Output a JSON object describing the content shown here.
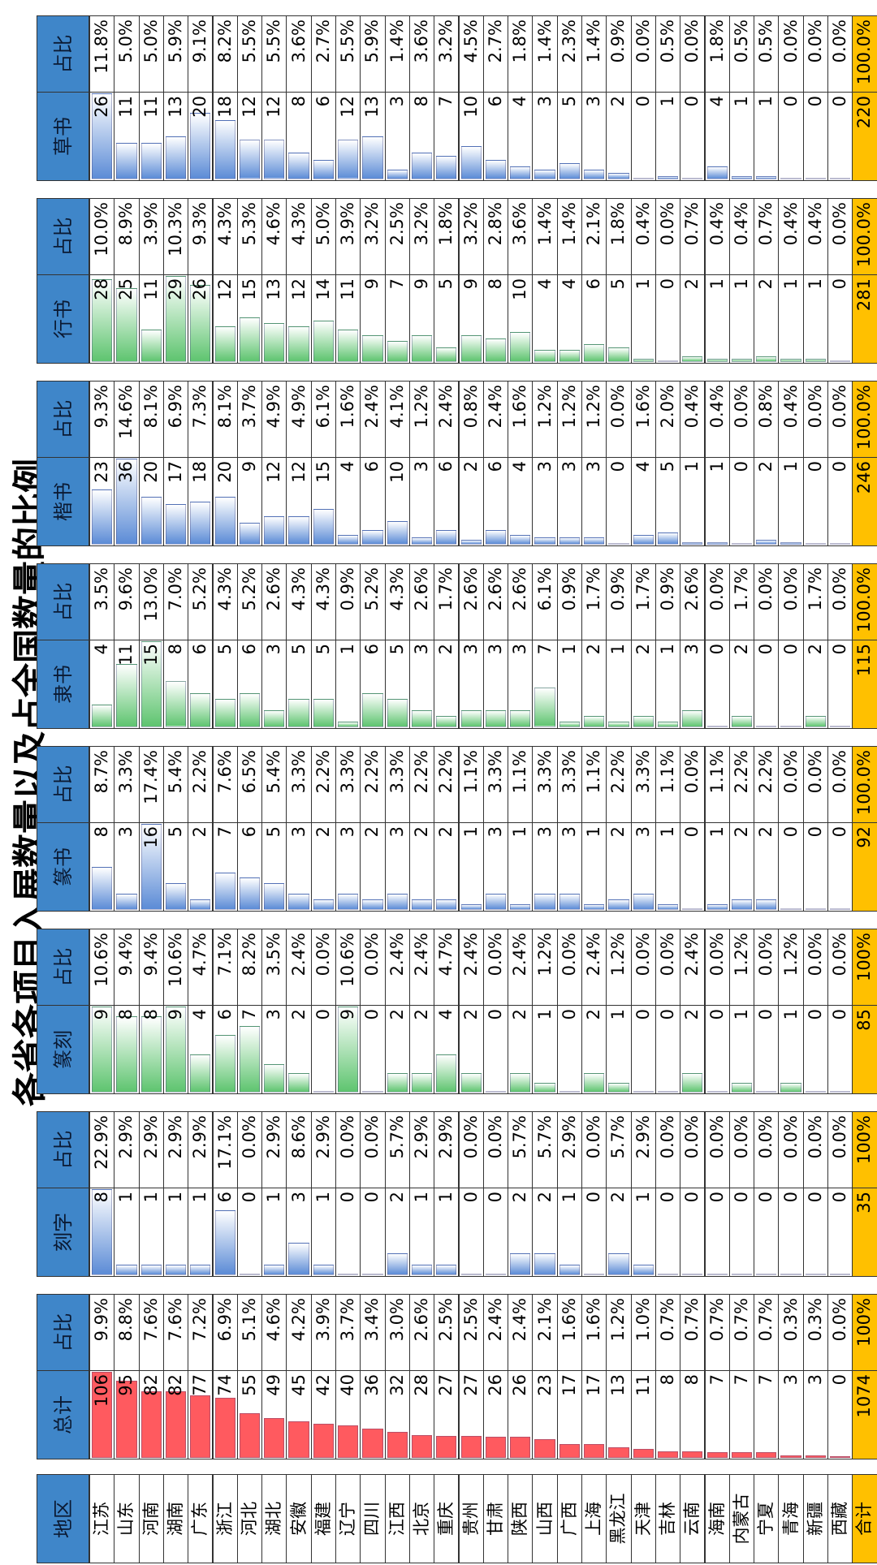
{
  "title": "各省各项目入展数量以及占全国数量的比例",
  "region_header": "地区",
  "regions": [
    "江苏",
    "山东",
    "河南",
    "湖南",
    "广东",
    "浙江",
    "河北",
    "湖北",
    "安徽",
    "福建",
    "辽宁",
    "四川",
    "江西",
    "北京",
    "重庆",
    "贵州",
    "甘肃",
    "陕西",
    "山西",
    "广西",
    "上海",
    "黑龙江",
    "天津",
    "吉林",
    "云南",
    "海南",
    "内蒙古",
    "宁夏",
    "青海",
    "新疆",
    "西藏"
  ],
  "total_label": "合计",
  "groups": [
    {
      "name": "总计",
      "share_label": "占比",
      "bar_color": "#ff5a5f",
      "bar_gradient": false,
      "counts": [
        106,
        95,
        82,
        82,
        77,
        74,
        55,
        49,
        45,
        42,
        40,
        36,
        32,
        28,
        27,
        27,
        26,
        26,
        23,
        17,
        17,
        13,
        11,
        8,
        8,
        7,
        7,
        7,
        3,
        3,
        0
      ],
      "shares": [
        "9.9%",
        "8.8%",
        "7.6%",
        "7.6%",
        "7.2%",
        "6.9%",
        "5.1%",
        "4.6%",
        "4.2%",
        "3.9%",
        "3.7%",
        "3.4%",
        "3.0%",
        "2.6%",
        "2.5%",
        "2.5%",
        "2.4%",
        "2.4%",
        "2.1%",
        "1.6%",
        "1.6%",
        "1.2%",
        "1.0%",
        "0.7%",
        "0.7%",
        "0.7%",
        "0.7%",
        "0.7%",
        "0.3%",
        "0.3%",
        "0.0%"
      ],
      "total": 1074,
      "total_share": "100%"
    },
    {
      "name": "刻字",
      "share_label": "占比",
      "bar_color": "#5b8bd6",
      "bar_gradient": true,
      "counts": [
        8,
        1,
        1,
        1,
        1,
        6,
        0,
        1,
        3,
        1,
        0,
        0,
        2,
        1,
        1,
        0,
        0,
        2,
        2,
        1,
        0,
        2,
        1,
        0,
        0,
        0,
        0,
        0,
        0,
        0,
        0
      ],
      "shares": [
        "22.9%",
        "2.9%",
        "2.9%",
        "2.9%",
        "2.9%",
        "17.1%",
        "0.0%",
        "2.9%",
        "8.6%",
        "2.9%",
        "0.0%",
        "0.0%",
        "5.7%",
        "2.9%",
        "2.9%",
        "0.0%",
        "0.0%",
        "5.7%",
        "5.7%",
        "2.9%",
        "0.0%",
        "5.7%",
        "2.9%",
        "0.0%",
        "0.0%",
        "0.0%",
        "0.0%",
        "0.0%",
        "0.0%",
        "0.0%",
        "0.0%"
      ],
      "total": 35,
      "total_share": "100%"
    },
    {
      "name": "篆刻",
      "share_label": "占比",
      "bar_color": "#5ec46f",
      "bar_gradient": true,
      "counts": [
        9,
        8,
        8,
        9,
        4,
        6,
        7,
        3,
        2,
        0,
        9,
        0,
        2,
        2,
        4,
        2,
        0,
        2,
        1,
        0,
        2,
        1,
        0,
        0,
        2,
        0,
        1,
        0,
        1,
        0,
        0
      ],
      "shares": [
        "10.6%",
        "9.4%",
        "9.4%",
        "10.6%",
        "4.7%",
        "7.1%",
        "8.2%",
        "3.5%",
        "2.4%",
        "0.0%",
        "10.6%",
        "0.0%",
        "2.4%",
        "2.4%",
        "4.7%",
        "2.4%",
        "0.0%",
        "2.4%",
        "1.2%",
        "0.0%",
        "2.4%",
        "1.2%",
        "0.0%",
        "0.0%",
        "2.4%",
        "0.0%",
        "1.2%",
        "0.0%",
        "1.2%",
        "0.0%",
        "0.0%"
      ],
      "total": 85,
      "total_share": "100%"
    },
    {
      "name": "篆书",
      "share_label": "占比",
      "bar_color": "#5b8bd6",
      "bar_gradient": true,
      "counts": [
        8,
        3,
        16,
        5,
        2,
        7,
        6,
        5,
        3,
        2,
        3,
        2,
        3,
        2,
        2,
        1,
        3,
        1,
        3,
        3,
        1,
        2,
        3,
        1,
        0,
        1,
        2,
        2,
        0,
        0,
        0
      ],
      "shares": [
        "8.7%",
        "3.3%",
        "17.4%",
        "5.4%",
        "2.2%",
        "7.6%",
        "6.5%",
        "5.4%",
        "3.3%",
        "2.2%",
        "3.3%",
        "2.2%",
        "3.3%",
        "2.2%",
        "2.2%",
        "1.1%",
        "3.3%",
        "1.1%",
        "3.3%",
        "3.3%",
        "1.1%",
        "2.2%",
        "3.3%",
        "1.1%",
        "0.0%",
        "1.1%",
        "2.2%",
        "2.2%",
        "0.0%",
        "0.0%",
        "0.0%"
      ],
      "total": 92,
      "total_share": "100.0%"
    },
    {
      "name": "隶书",
      "share_label": "占比",
      "bar_color": "#5ec46f",
      "bar_gradient": true,
      "counts": [
        4,
        11,
        15,
        8,
        6,
        5,
        6,
        3,
        5,
        5,
        1,
        6,
        5,
        3,
        2,
        3,
        3,
        3,
        7,
        1,
        2,
        1,
        2,
        1,
        3,
        0,
        2,
        0,
        0,
        2,
        0
      ],
      "shares": [
        "3.5%",
        "9.6%",
        "13.0%",
        "7.0%",
        "5.2%",
        "4.3%",
        "5.2%",
        "2.6%",
        "4.3%",
        "4.3%",
        "0.9%",
        "5.2%",
        "4.3%",
        "2.6%",
        "1.7%",
        "2.6%",
        "2.6%",
        "2.6%",
        "6.1%",
        "0.9%",
        "1.7%",
        "0.9%",
        "1.7%",
        "0.9%",
        "2.6%",
        "0.0%",
        "1.7%",
        "0.0%",
        "0.0%",
        "1.7%",
        "0.0%"
      ],
      "total": 115,
      "total_share": "100.0%"
    },
    {
      "name": "楷书",
      "share_label": "占比",
      "bar_color": "#5b8bd6",
      "bar_gradient": true,
      "counts": [
        23,
        36,
        20,
        17,
        18,
        20,
        9,
        12,
        12,
        15,
        4,
        6,
        10,
        3,
        6,
        2,
        6,
        4,
        3,
        3,
        3,
        0,
        4,
        5,
        1,
        1,
        0,
        2,
        1,
        0,
        0
      ],
      "shares": [
        "9.3%",
        "14.6%",
        "8.1%",
        "6.9%",
        "7.3%",
        "8.1%",
        "3.7%",
        "4.9%",
        "4.9%",
        "6.1%",
        "1.6%",
        "2.4%",
        "4.1%",
        "1.2%",
        "2.4%",
        "0.8%",
        "2.4%",
        "1.6%",
        "1.2%",
        "1.2%",
        "1.2%",
        "0.0%",
        "1.6%",
        "2.0%",
        "0.4%",
        "0.4%",
        "0.0%",
        "0.8%",
        "0.4%",
        "0.0%",
        "0.0%"
      ],
      "total": 246,
      "total_share": "100.0%"
    },
    {
      "name": "行书",
      "share_label": "占比",
      "bar_color": "#5ec46f",
      "bar_gradient": true,
      "counts": [
        28,
        25,
        11,
        29,
        26,
        12,
        15,
        13,
        12,
        14,
        11,
        9,
        7,
        9,
        5,
        9,
        8,
        10,
        4,
        4,
        6,
        5,
        1,
        0,
        2,
        1,
        1,
        2,
        1,
        1,
        0
      ],
      "shares": [
        "10.0%",
        "8.9%",
        "3.9%",
        "10.3%",
        "9.3%",
        "4.3%",
        "5.3%",
        "4.6%",
        "4.3%",
        "5.0%",
        "3.9%",
        "3.2%",
        "2.5%",
        "3.2%",
        "1.8%",
        "3.2%",
        "2.8%",
        "3.6%",
        "1.4%",
        "1.4%",
        "2.1%",
        "1.8%",
        "0.4%",
        "0.0%",
        "0.7%",
        "0.4%",
        "0.4%",
        "0.7%",
        "0.4%",
        "0.4%",
        "0.0%"
      ],
      "total": 281,
      "total_share": "100.0%"
    },
    {
      "name": "草书",
      "share_label": "占比",
      "bar_color": "#5b8bd6",
      "bar_gradient": true,
      "counts": [
        26,
        11,
        11,
        13,
        20,
        18,
        12,
        12,
        8,
        6,
        12,
        13,
        3,
        8,
        7,
        10,
        6,
        4,
        3,
        5,
        3,
        2,
        0,
        1,
        0,
        4,
        1,
        1,
        0,
        0,
        0
      ],
      "shares": [
        "11.8%",
        "5.0%",
        "5.0%",
        "5.9%",
        "9.1%",
        "8.2%",
        "5.5%",
        "5.5%",
        "3.6%",
        "2.7%",
        "5.5%",
        "5.9%",
        "1.4%",
        "3.6%",
        "3.2%",
        "4.5%",
        "2.7%",
        "1.8%",
        "1.4%",
        "2.3%",
        "1.4%",
        "0.9%",
        "0.0%",
        "0.5%",
        "0.0%",
        "1.8%",
        "0.5%",
        "0.5%",
        "0.0%",
        "0.0%",
        "0.0%"
      ],
      "total": 220,
      "total_share": "100.0%"
    }
  ]
}
